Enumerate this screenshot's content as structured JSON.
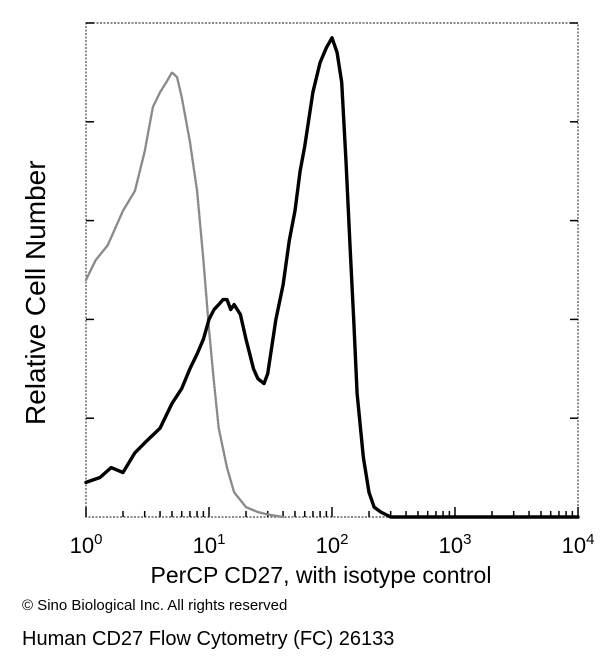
{
  "chart_data": {
    "type": "line",
    "title": "",
    "xlabel": "PerCP CD27, with isotype control",
    "ylabel": "Relative Cell Number",
    "x_scale": "log",
    "xlim": [
      1,
      10000
    ],
    "ylim": [
      0,
      1
    ],
    "x_tick_labels": [
      {
        "value": 1,
        "base": "10",
        "exp": "0"
      },
      {
        "value": 10,
        "base": "10",
        "exp": "1"
      },
      {
        "value": 100,
        "base": "10",
        "exp": "2"
      },
      {
        "value": 1000,
        "base": "10",
        "exp": "3"
      },
      {
        "value": 10000,
        "base": "10",
        "exp": "4"
      }
    ],
    "y_ticks": [
      0.2,
      0.4,
      0.6,
      0.8,
      1.0
    ],
    "grid": false,
    "legend": "none",
    "series": [
      {
        "style": "dotted-gray",
        "x": [
          1,
          1.2,
          1.5,
          2,
          2.5,
          3,
          3.5,
          4,
          4.5,
          5,
          5.5,
          6,
          7,
          8,
          9,
          10,
          11,
          12,
          14,
          16,
          20,
          25,
          30,
          40
        ],
        "y": [
          0.48,
          0.52,
          0.55,
          0.62,
          0.66,
          0.74,
          0.83,
          0.86,
          0.88,
          0.9,
          0.89,
          0.85,
          0.76,
          0.66,
          0.52,
          0.38,
          0.27,
          0.18,
          0.1,
          0.05,
          0.02,
          0.01,
          0.005,
          0
        ]
      },
      {
        "style": "solid-black",
        "x": [
          1,
          1.3,
          1.6,
          2,
          2.5,
          3,
          4,
          5,
          6,
          7,
          8,
          9,
          10,
          11,
          12,
          13,
          14,
          15,
          16,
          18,
          20,
          23,
          25,
          28,
          30,
          35,
          40,
          45,
          50,
          55,
          60,
          70,
          80,
          90,
          100,
          110,
          120,
          130,
          140,
          150,
          160,
          180,
          200,
          220,
          250,
          300,
          400,
          1000,
          10000
        ],
        "y": [
          0.07,
          0.08,
          0.1,
          0.09,
          0.13,
          0.15,
          0.18,
          0.23,
          0.26,
          0.3,
          0.33,
          0.36,
          0.4,
          0.42,
          0.43,
          0.44,
          0.44,
          0.42,
          0.43,
          0.41,
          0.36,
          0.3,
          0.28,
          0.27,
          0.29,
          0.4,
          0.47,
          0.56,
          0.62,
          0.7,
          0.75,
          0.86,
          0.92,
          0.95,
          0.97,
          0.94,
          0.88,
          0.72,
          0.55,
          0.4,
          0.25,
          0.12,
          0.05,
          0.02,
          0.01,
          0,
          0,
          0,
          0
        ]
      }
    ]
  },
  "labels": {
    "copyright": "© Sino Biological Inc. All rights reserved",
    "caption": "Human CD27 Flow Cytometry (FC) 26133"
  }
}
